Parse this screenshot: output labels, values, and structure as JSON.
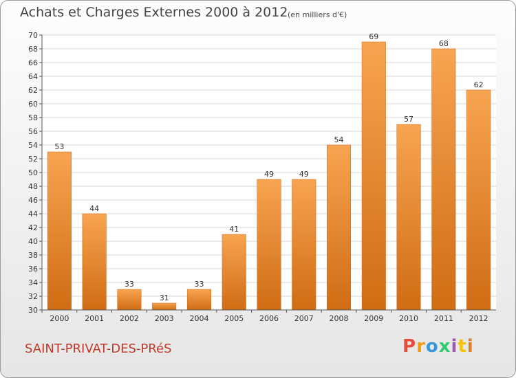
{
  "header": {
    "title": "Achats et Charges Externes 2000 à 2012",
    "subtitle": "(en milliers d'€)"
  },
  "footer": {
    "town": "SAINT-PRIVAT-DES-PRéS",
    "logo_text": "Proxiti"
  },
  "colors": {
    "bar_top": "#f8a450",
    "bar_bottom": "#d06c14",
    "town_text": "#c0392b",
    "logo": [
      "#e74c3c",
      "#f39c12",
      "#3498db",
      "#2ecc71",
      "#9b59b6",
      "#f1c40f",
      "#e67e22"
    ]
  },
  "chart_data": {
    "type": "bar",
    "title": "Achats et Charges Externes 2000 à 2012",
    "subtitle": "(en milliers d'€)",
    "categories": [
      "2000",
      "2001",
      "2002",
      "2003",
      "2004",
      "2005",
      "2006",
      "2007",
      "2008",
      "2009",
      "2010",
      "2011",
      "2012"
    ],
    "values": [
      53,
      44,
      33,
      31,
      33,
      41,
      49,
      49,
      54,
      69,
      57,
      68,
      62
    ],
    "ylim": [
      30,
      70
    ],
    "yticks": [
      30,
      32,
      34,
      36,
      38,
      40,
      42,
      44,
      46,
      48,
      50,
      52,
      54,
      56,
      58,
      60,
      62,
      64,
      66,
      68,
      70
    ],
    "grid": true,
    "xlabel": "",
    "ylabel": ""
  }
}
